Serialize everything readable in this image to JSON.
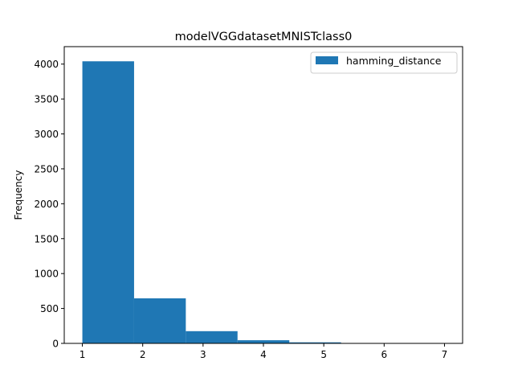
{
  "chart_data": {
    "type": "bar",
    "subtype": "histogram",
    "title": "modelVGGdatasetMNISTclass0",
    "xlabel": "",
    "ylabel": "Frequency",
    "xlim": [
      0.7,
      7.3
    ],
    "ylim": [
      0,
      4250
    ],
    "xticks": [
      1,
      2,
      3,
      4,
      5,
      6,
      7
    ],
    "yticks": [
      0,
      500,
      1000,
      1500,
      2000,
      2500,
      3000,
      3500,
      4000
    ],
    "grid": false,
    "legend_position": "top-right",
    "series": [
      {
        "name": "hamming_distance",
        "color": "#1f77b4",
        "bins": [
          {
            "x0": 1.0,
            "x1": 1.857,
            "value": 4040
          },
          {
            "x0": 1.857,
            "x1": 2.714,
            "value": 645
          },
          {
            "x0": 2.714,
            "x1": 3.571,
            "value": 175
          },
          {
            "x0": 3.571,
            "x1": 4.429,
            "value": 45
          },
          {
            "x0": 4.429,
            "x1": 5.286,
            "value": 15
          },
          {
            "x0": 5.286,
            "x1": 6.143,
            "value": 3
          },
          {
            "x0": 6.143,
            "x1": 7.0,
            "value": 2
          }
        ]
      }
    ]
  }
}
